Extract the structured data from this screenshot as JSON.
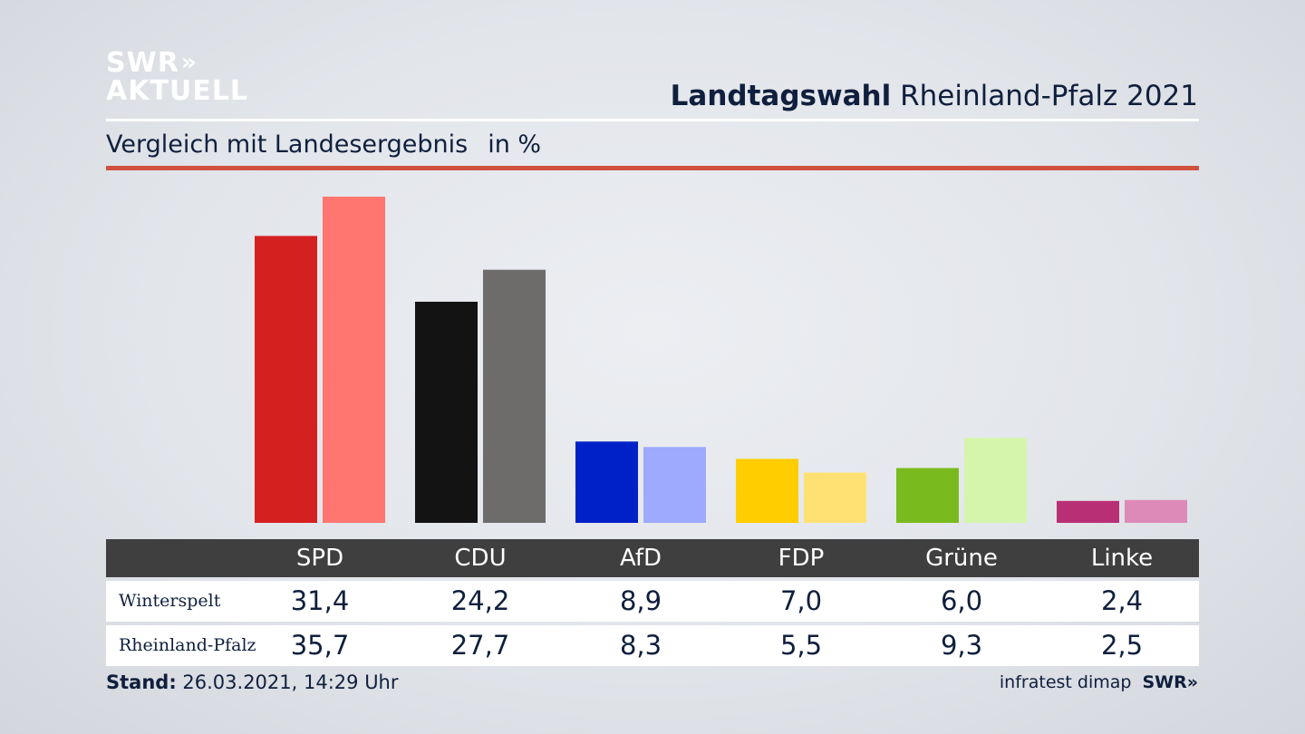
{
  "logo": {
    "line1": "SWR",
    "chevrons": "»",
    "line2": "AKTUELL"
  },
  "header": {
    "title_bold": "Landtagswahl",
    "title_rest": "Rheinland-Pfalz 2021",
    "subtitle": "Vergleich mit Landesergebnis",
    "unit": "in %"
  },
  "colors": {
    "accent_rule": "#d0513e",
    "table_header_bg": "#3f3f3f"
  },
  "chart_data": {
    "type": "bar",
    "categories": [
      "SPD",
      "CDU",
      "AfD",
      "FDP",
      "Grüne",
      "Linke"
    ],
    "series": [
      {
        "name": "Winterspelt",
        "values": [
          31.4,
          24.2,
          8.9,
          7.0,
          6.0,
          2.4
        ],
        "colors": [
          "#d52020",
          "#131313",
          "#0021c8",
          "#ffcd00",
          "#79bb1e",
          "#b92f75"
        ]
      },
      {
        "name": "Rheinland-Pfalz",
        "values": [
          35.7,
          27.7,
          8.3,
          5.5,
          9.3,
          2.5
        ],
        "colors": [
          "#ff7570",
          "#6d6c6b",
          "#9daafd",
          "#ffe173",
          "#d5f6aa",
          "#de8ab8"
        ]
      }
    ],
    "table": {
      "rows": [
        {
          "label": "Winterspelt",
          "cells": [
            "31,4",
            "24,2",
            "8,9",
            "7,0",
            "6,0",
            "2,4"
          ]
        },
        {
          "label": "Rheinland-Pfalz",
          "cells": [
            "35,7",
            "27,7",
            "8,3",
            "5,5",
            "9,3",
            "2,5"
          ]
        }
      ]
    },
    "ylim": [
      0,
      36
    ]
  },
  "footer": {
    "stand_label": "Stand:",
    "stand_value": "26.03.2021, 14:29 Uhr",
    "source": "infratest dimap",
    "brand": "SWR»"
  }
}
